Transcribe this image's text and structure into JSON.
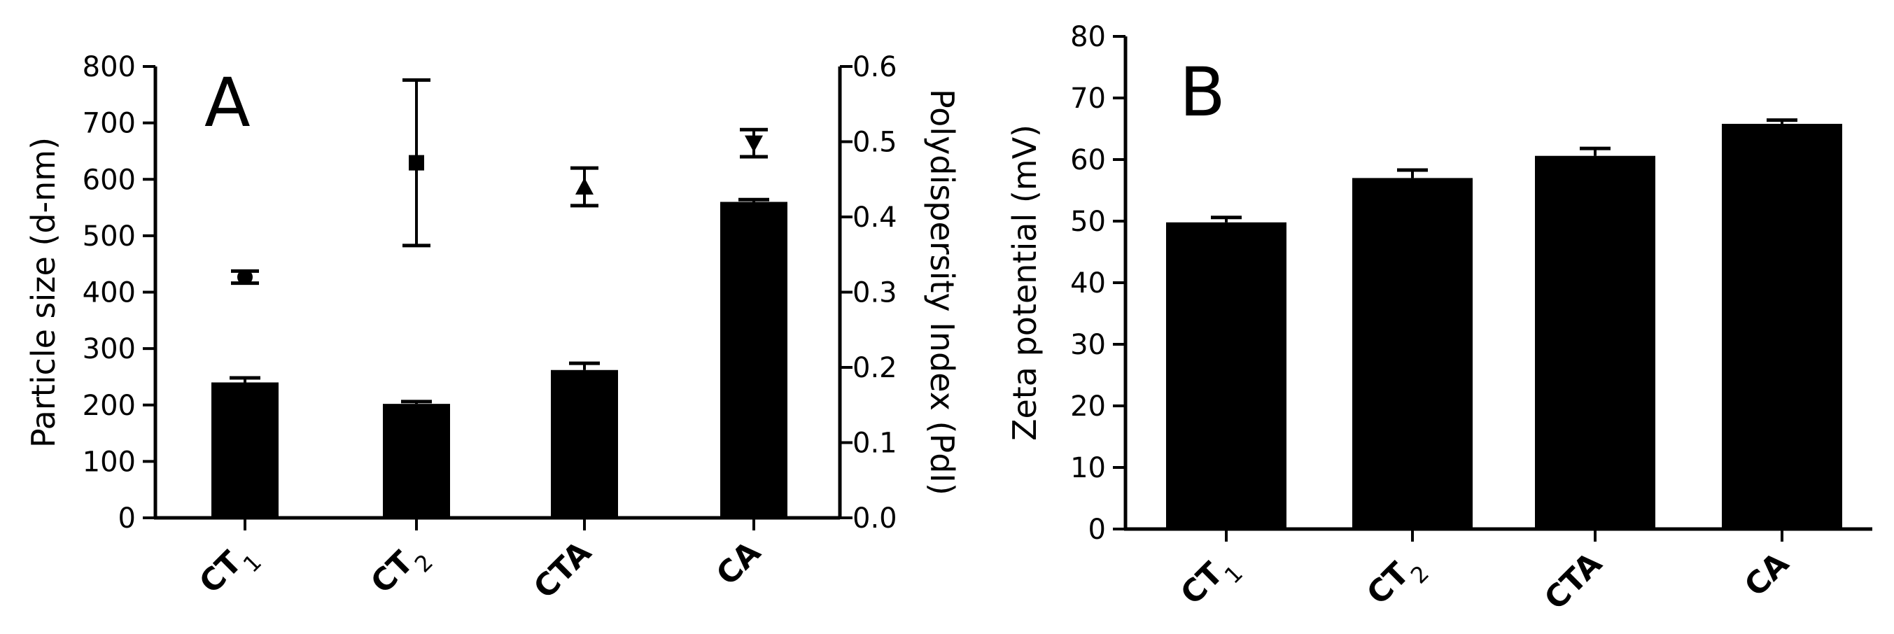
{
  "chart_data": [
    {
      "panel": "A",
      "type": "bar",
      "categories": [
        "CT",
        "CT",
        "CTA",
        "CA"
      ],
      "category_subscripts": [
        "1",
        "2",
        "",
        ""
      ],
      "ylabel": "Particle size (d-nm)",
      "ylim": [
        0,
        800
      ],
      "yticks": [
        "0",
        "100",
        "200",
        "300",
        "400",
        "500",
        "600",
        "700",
        "800"
      ],
      "series": [
        {
          "values": [
            240,
            202,
            262,
            560
          ],
          "errors": [
            8,
            4,
            12,
            4
          ]
        }
      ],
      "secondary_axis": {
        "label": "Polydispersity Index (PdI)",
        "ylim": [
          0,
          0.6
        ],
        "yticks": [
          "0.0",
          "0.1",
          "0.2",
          "0.3",
          "0.4",
          "0.5",
          "0.6"
        ],
        "series": [
          {
            "type": "scatter",
            "values": [
              0.32,
              0.472,
              0.44,
              0.498
            ],
            "errors": [
              0.008,
              0.11,
              0.025,
              0.018
            ],
            "markers": [
              "circle",
              "square",
              "triangle-up",
              "triangle-down"
            ]
          }
        ]
      },
      "grid": false
    },
    {
      "panel": "B",
      "type": "bar",
      "categories": [
        "CT",
        "CT",
        "CTA",
        "CA"
      ],
      "category_subscripts": [
        "1",
        "2",
        "",
        ""
      ],
      "ylabel": "Zeta potential (mV)",
      "ylim": [
        0,
        80
      ],
      "yticks": [
        "0",
        "10",
        "20",
        "30",
        "40",
        "50",
        "60",
        "70",
        "80"
      ],
      "series": [
        {
          "values": [
            49.8,
            57.0,
            60.6,
            65.8
          ],
          "errors": [
            0.8,
            1.3,
            1.2,
            0.6
          ]
        }
      ],
      "grid": false
    }
  ]
}
